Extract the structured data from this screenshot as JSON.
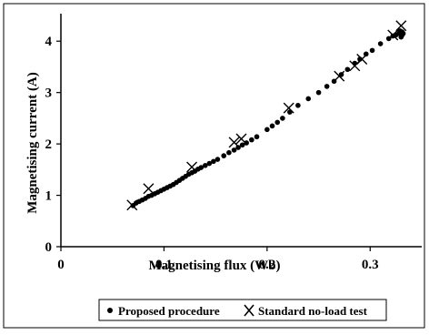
{
  "chart_data": {
    "type": "scatter",
    "xlabel": "Magnetising flux (Wb)",
    "ylabel": "Magnetising current (A)",
    "xlim": [
      0,
      0.35
    ],
    "ylim": [
      0,
      4.5
    ],
    "x_ticks": [
      "0",
      "0.1",
      "0.2",
      "0.3"
    ],
    "y_ticks": [
      "0",
      "1",
      "2",
      "3",
      "4"
    ],
    "grid": false,
    "legend_position": "bottom",
    "series": [
      {
        "name": "Proposed procedure",
        "marker": "dot",
        "points": [
          [
            0.07,
            0.8
          ],
          [
            0.073,
            0.85
          ],
          [
            0.076,
            0.88
          ],
          [
            0.079,
            0.91
          ],
          [
            0.082,
            0.94
          ],
          [
            0.085,
            0.98
          ],
          [
            0.088,
            1.0
          ],
          [
            0.091,
            1.03
          ],
          [
            0.094,
            1.06
          ],
          [
            0.097,
            1.09
          ],
          [
            0.1,
            1.12
          ],
          [
            0.103,
            1.15
          ],
          [
            0.106,
            1.18
          ],
          [
            0.109,
            1.21
          ],
          [
            0.112,
            1.25
          ],
          [
            0.115,
            1.29
          ],
          [
            0.118,
            1.33
          ],
          [
            0.121,
            1.37
          ],
          [
            0.124,
            1.41
          ],
          [
            0.127,
            1.44
          ],
          [
            0.13,
            1.47
          ],
          [
            0.133,
            1.51
          ],
          [
            0.136,
            1.54
          ],
          [
            0.14,
            1.58
          ],
          [
            0.144,
            1.62
          ],
          [
            0.148,
            1.66
          ],
          [
            0.152,
            1.7
          ],
          [
            0.158,
            1.77
          ],
          [
            0.163,
            1.83
          ],
          [
            0.168,
            1.88
          ],
          [
            0.172,
            1.93
          ],
          [
            0.176,
            1.98
          ],
          [
            0.18,
            2.02
          ],
          [
            0.185,
            2.08
          ],
          [
            0.19,
            2.14
          ],
          [
            0.2,
            2.28
          ],
          [
            0.205,
            2.35
          ],
          [
            0.21,
            2.42
          ],
          [
            0.215,
            2.5
          ],
          [
            0.222,
            2.62
          ],
          [
            0.23,
            2.75
          ],
          [
            0.24,
            2.88
          ],
          [
            0.25,
            3.0
          ],
          [
            0.258,
            3.12
          ],
          [
            0.265,
            3.22
          ],
          [
            0.272,
            3.35
          ],
          [
            0.278,
            3.45
          ],
          [
            0.285,
            3.57
          ],
          [
            0.29,
            3.65
          ],
          [
            0.296,
            3.75
          ],
          [
            0.302,
            3.82
          ],
          [
            0.31,
            3.95
          ],
          [
            0.318,
            4.05
          ],
          [
            0.322,
            4.1
          ],
          [
            0.325,
            4.12
          ],
          [
            0.328,
            4.15
          ],
          [
            0.329,
            4.2
          ],
          [
            0.33,
            4.08
          ],
          [
            0.331,
            4.12
          ],
          [
            0.331,
            4.18
          ],
          [
            0.332,
            4.15
          ]
        ]
      },
      {
        "name": "Standard no-load test",
        "marker": "cross",
        "points": [
          [
            0.069,
            0.81
          ],
          [
            0.085,
            1.13
          ],
          [
            0.127,
            1.55
          ],
          [
            0.168,
            2.03
          ],
          [
            0.175,
            2.1
          ],
          [
            0.221,
            2.7
          ],
          [
            0.27,
            3.32
          ],
          [
            0.285,
            3.52
          ],
          [
            0.292,
            3.65
          ],
          [
            0.322,
            4.12
          ],
          [
            0.33,
            4.3
          ]
        ]
      }
    ]
  }
}
